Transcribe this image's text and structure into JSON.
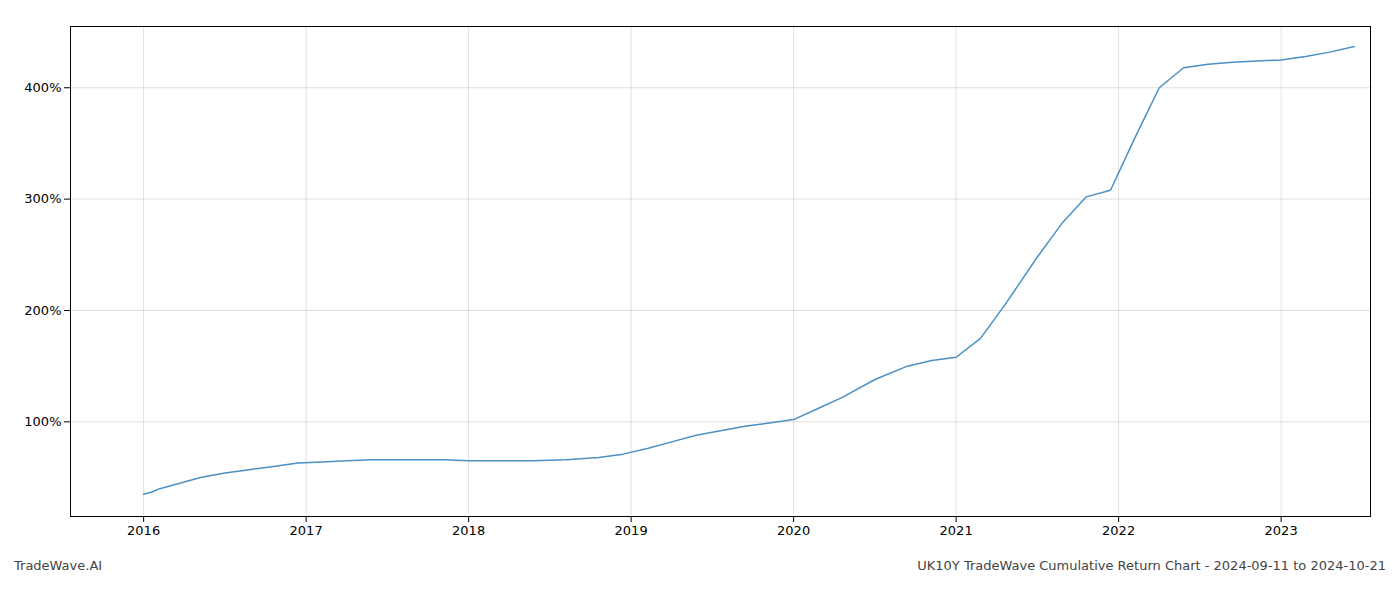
{
  "chart_data": {
    "type": "line",
    "title": "UK10Y TradeWave Cumulative Return Chart - 2024-09-11 to 2024-10-21",
    "annotations": [
      "TradeWave.AI"
    ],
    "color": "#4a90c4",
    "x": [
      2016.0,
      2016.05,
      2016.1,
      2016.2,
      2016.35,
      2016.5,
      2016.65,
      2016.8,
      2016.95,
      2017.1,
      2017.25,
      2017.4,
      2017.55,
      2017.7,
      2017.85,
      2018.0,
      2018.2,
      2018.4,
      2018.6,
      2018.8,
      2018.95,
      2019.1,
      2019.25,
      2019.4,
      2019.55,
      2019.7,
      2019.85,
      2020.0,
      2020.15,
      2020.3,
      2020.5,
      2020.7,
      2020.85,
      2021.0,
      2021.15,
      2021.3,
      2021.5,
      2021.65,
      2021.8,
      2021.95,
      2022.1,
      2022.25,
      2022.4,
      2022.55,
      2022.7,
      2022.85,
      2023.0,
      2023.15,
      2023.3,
      2023.45
    ],
    "values": [
      35,
      37,
      40,
      44,
      50,
      54,
      57,
      60,
      63,
      64,
      65,
      66,
      66,
      66,
      66,
      65,
      65,
      65,
      66,
      68,
      71,
      76,
      82,
      88,
      92,
      96,
      99,
      102,
      112,
      122,
      138,
      150,
      155,
      158,
      175,
      205,
      248,
      278,
      302,
      308,
      355,
      400,
      418,
      421,
      423,
      424,
      425,
      428,
      432,
      437
    ],
    "xlim": [
      2015.55,
      2023.55
    ],
    "xticks": [
      2016,
      2017,
      2018,
      2019,
      2020,
      2021,
      2022,
      2023
    ],
    "ylim": [
      15,
      455
    ],
    "yticks": [
      {
        "value": 100,
        "label": "100%"
      },
      {
        "value": 200,
        "label": "200%"
      },
      {
        "value": 300,
        "label": "300%"
      },
      {
        "value": 400,
        "label": "400%"
      }
    ],
    "grid": true
  }
}
